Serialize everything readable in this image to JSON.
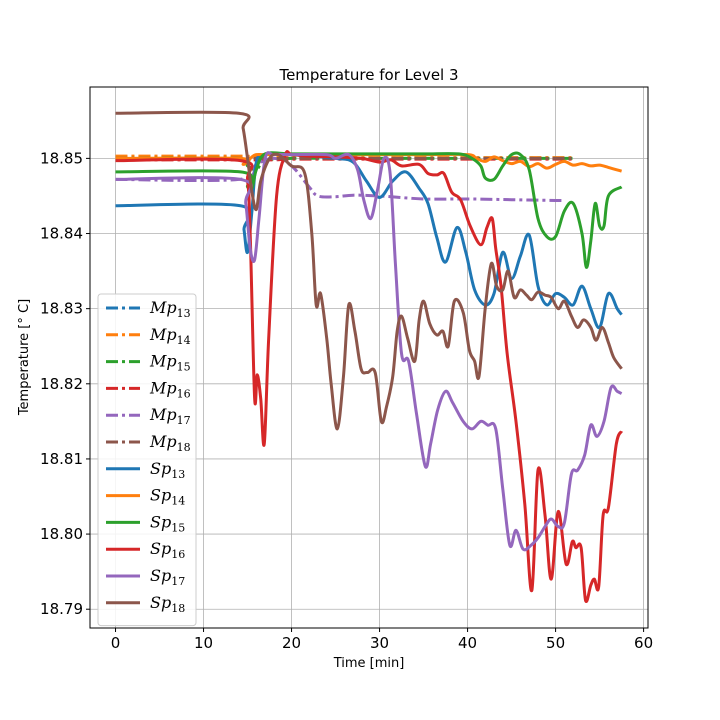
{
  "chart_data": {
    "type": "line",
    "title": "Temperature for Level 3",
    "xlabel": "Time [min]",
    "ylabel": "Temperature [° C]",
    "xlim": [
      -2.9,
      60.5
    ],
    "ylim": [
      18.7875,
      18.8595
    ],
    "xticks": [
      0,
      10,
      20,
      30,
      40,
      50,
      60
    ],
    "xtick_labels": [
      "0",
      "10",
      "20",
      "30",
      "40",
      "50",
      "60"
    ],
    "yticks": [
      18.79,
      18.8,
      18.81,
      18.82,
      18.83,
      18.84,
      18.85
    ],
    "ytick_labels": [
      "18.79",
      "18.80",
      "18.81",
      "18.82",
      "18.83",
      "18.84",
      "18.85"
    ],
    "grid": true,
    "legend_position": "lower-left",
    "series": [
      {
        "name": "Mp",
        "sub": "13",
        "color": "#1f77b4",
        "style": "dashdot",
        "x": [
          0,
          14,
          16,
          18,
          20,
          25,
          30,
          35,
          40,
          45,
          50,
          52
        ],
        "y": [
          18.8502,
          18.8502,
          18.8501,
          18.8501,
          18.8501,
          18.85,
          18.85,
          18.85,
          18.85,
          18.85,
          18.85,
          18.85
        ]
      },
      {
        "name": "Mp",
        "sub": "14",
        "color": "#ff7f0e",
        "style": "dashdot",
        "x": [
          0,
          14,
          16,
          18,
          20,
          25,
          30,
          35,
          40,
          45,
          50,
          52
        ],
        "y": [
          18.8503,
          18.8503,
          18.8502,
          18.8502,
          18.8502,
          18.8501,
          18.8501,
          18.8501,
          18.8501,
          18.8501,
          18.8501,
          18.8501
        ]
      },
      {
        "name": "Mp",
        "sub": "15",
        "color": "#2ca02c",
        "style": "dashdot",
        "x": [
          0,
          14,
          15,
          16,
          17,
          20,
          25,
          30,
          35,
          40,
          45,
          50,
          52
        ],
        "y": [
          18.85,
          18.85,
          18.849,
          18.8485,
          18.8497,
          18.85,
          18.85,
          18.85,
          18.85,
          18.85,
          18.85,
          18.85,
          18.85
        ]
      },
      {
        "name": "Mp",
        "sub": "16",
        "color": "#d62728",
        "style": "dashdot",
        "x": [
          0,
          14,
          16,
          18,
          20,
          25,
          30,
          35,
          40,
          45,
          50,
          52
        ],
        "y": [
          18.8498,
          18.8498,
          18.8498,
          18.8498,
          18.8499,
          18.8499,
          18.8499,
          18.8499,
          18.8499,
          18.8499,
          18.8499,
          18.8499
        ]
      },
      {
        "name": "Mp",
        "sub": "17",
        "color": "#9467bd",
        "style": "dashdot",
        "x": [
          0,
          14,
          16,
          18,
          20,
          22,
          23,
          25,
          27,
          30,
          35,
          40,
          45,
          50,
          51
        ],
        "y": [
          18.8472,
          18.8472,
          18.8492,
          18.85,
          18.849,
          18.8462,
          18.845,
          18.8449,
          18.8451,
          18.845,
          18.8446,
          18.8446,
          18.8445,
          18.8444,
          18.8444
        ]
      },
      {
        "name": "Mp",
        "sub": "18",
        "color": "#8c564b",
        "style": "dashdot",
        "x": [
          0,
          14,
          16,
          18,
          20,
          25,
          30,
          35,
          40,
          45,
          50,
          52
        ],
        "y": [
          18.85,
          18.85,
          18.85,
          18.85,
          18.85,
          18.85,
          18.85,
          18.85,
          18.85,
          18.85,
          18.85,
          18.85
        ]
      },
      {
        "name": "Sp",
        "sub": "13",
        "color": "#1f77b4",
        "style": "solid",
        "x": [
          0,
          14.2,
          14.6,
          15,
          15.5,
          16,
          17,
          20,
          25,
          27,
          28.5,
          30,
          31.5,
          33,
          34.5,
          35.5,
          36.5,
          37.5,
          38.8,
          39.8,
          40.8,
          42,
          43,
          44,
          45,
          46,
          47,
          48,
          49,
          50,
          51,
          52,
          53,
          54,
          55,
          56,
          57,
          57.5
        ],
        "y": [
          18.8437,
          18.8437,
          18.8405,
          18.8375,
          18.843,
          18.8495,
          18.8505,
          18.8505,
          18.85,
          18.8495,
          18.847,
          18.8448,
          18.847,
          18.8482,
          18.846,
          18.844,
          18.8395,
          18.8362,
          18.8408,
          18.8375,
          18.8325,
          18.8305,
          18.832,
          18.8375,
          18.834,
          18.837,
          18.8398,
          18.833,
          18.8305,
          18.832,
          18.8315,
          18.8305,
          18.833,
          18.83,
          18.8275,
          18.832,
          18.83,
          18.8292
        ]
      },
      {
        "name": "Sp",
        "sub": "14",
        "color": "#ff7f0e",
        "style": "solid",
        "x": [
          0,
          14,
          14.5,
          15,
          15.5,
          16,
          17,
          20,
          25,
          30,
          35,
          40,
          41,
          42,
          43,
          44,
          45,
          46,
          47,
          48,
          49,
          50,
          51,
          52,
          53,
          54,
          55,
          56,
          57.5
        ],
        "y": [
          18.85,
          18.85,
          18.8492,
          18.8496,
          18.8502,
          18.8505,
          18.8505,
          18.8505,
          18.8505,
          18.8505,
          18.8505,
          18.8505,
          18.85,
          18.8496,
          18.8502,
          18.8497,
          18.8493,
          18.8496,
          18.8489,
          18.8493,
          18.8487,
          18.8492,
          18.8496,
          18.8491,
          18.8493,
          18.849,
          18.8491,
          18.8488,
          18.8483
        ]
      },
      {
        "name": "Sp",
        "sub": "15",
        "color": "#2ca02c",
        "style": "solid",
        "x": [
          0,
          14.2,
          15,
          15.5,
          16,
          17,
          20,
          25,
          30,
          35,
          39,
          40.5,
          41.5,
          42,
          43,
          44,
          45,
          46,
          47,
          48,
          49,
          50,
          51,
          52,
          53,
          53.5,
          54,
          54.5,
          55,
          55.5,
          56,
          57.5
        ],
        "y": [
          18.8482,
          18.8482,
          18.8462,
          18.846,
          18.8485,
          18.8506,
          18.8506,
          18.8506,
          18.8506,
          18.8506,
          18.8506,
          18.85,
          18.849,
          18.8474,
          18.8472,
          18.849,
          18.8505,
          18.8505,
          18.8485,
          18.842,
          18.8396,
          18.8396,
          18.843,
          18.844,
          18.84,
          18.8355,
          18.839,
          18.844,
          18.841,
          18.841,
          18.845,
          18.8462
        ]
      },
      {
        "name": "Sp",
        "sub": "16",
        "color": "#d62728",
        "style": "solid",
        "x": [
          0,
          14.2,
          15,
          15.3,
          15.8,
          16.1,
          16.5,
          16.9,
          17.4,
          18.3,
          19.3,
          20,
          22,
          25,
          28,
          30,
          31.3,
          32.5,
          34.5,
          35.5,
          36.5,
          37.3,
          38.2,
          39.2,
          40.3,
          41.5,
          42.2,
          42.8,
          43.2,
          43.8,
          44.5,
          45.5,
          46.5,
          47.3,
          48.0,
          48.8,
          49.5,
          50.3,
          51.2,
          51.9,
          52.3,
          52.9,
          53.4,
          54.0,
          54.4,
          54.9,
          55.4,
          56.0,
          56.9,
          57.5
        ],
        "y": [
          18.8497,
          18.8497,
          18.847,
          18.84,
          18.8182,
          18.8212,
          18.818,
          18.812,
          18.826,
          18.845,
          18.8505,
          18.8505,
          18.8503,
          18.8502,
          18.85,
          18.8495,
          18.8498,
          18.849,
          18.8492,
          18.848,
          18.8478,
          18.848,
          18.8455,
          18.8445,
          18.841,
          18.8385,
          18.8408,
          18.842,
          18.838,
          18.833,
          18.824,
          18.815,
          18.804,
          18.7925,
          18.8085,
          18.8025,
          18.794,
          18.803,
          18.796,
          18.799,
          18.7982,
          18.7982,
          18.7912,
          18.7932,
          18.794,
          18.793,
          18.8025,
          18.8035,
          18.812,
          18.8137
        ]
      },
      {
        "name": "Sp",
        "sub": "17",
        "color": "#9467bd",
        "style": "solid",
        "x": [
          0,
          14.2,
          14.8,
          15.3,
          15.8,
          16.3,
          17.0,
          18,
          20,
          24,
          25,
          26.5,
          27.5,
          28.2,
          29,
          29.8,
          30.5,
          31.2,
          31.8,
          32.5,
          33.3,
          34.2,
          35.2,
          35.8,
          36.6,
          37.5,
          38.3,
          39.5,
          40.5,
          41.5,
          42.3,
          43.2,
          44,
          44.8,
          45.5,
          46.3,
          47.2,
          48.0,
          48.8,
          49.5,
          50.3,
          51.0,
          51.8,
          52.5,
          53.3,
          54.0,
          54.7,
          55.5,
          56.3,
          57.0,
          57.5
        ],
        "y": [
          18.8472,
          18.8472,
          18.844,
          18.838,
          18.8365,
          18.842,
          18.85,
          18.8505,
          18.8505,
          18.8505,
          18.85,
          18.8505,
          18.8485,
          18.8445,
          18.842,
          18.846,
          18.85,
          18.848,
          18.836,
          18.824,
          18.823,
          18.816,
          18.809,
          18.812,
          18.8165,
          18.819,
          18.8175,
          18.815,
          18.814,
          18.815,
          18.8145,
          18.814,
          18.806,
          18.7985,
          18.8005,
          18.798,
          18.7985,
          18.7995,
          18.801,
          18.802,
          18.801,
          18.8015,
          18.808,
          18.8085,
          18.8105,
          18.8145,
          18.813,
          18.815,
          18.8195,
          18.819,
          18.8187
        ]
      },
      {
        "name": "Sp",
        "sub": "18",
        "color": "#8c564b",
        "style": "solid",
        "x": [
          0,
          14.0,
          14.5,
          15,
          15.5,
          16.0,
          16.5,
          17.5,
          18.5,
          20,
          21.5,
          22.3,
          22.8,
          23.3,
          24.0,
          24.5,
          25.2,
          25.9,
          26.5,
          27.2,
          27.9,
          28.6,
          29.5,
          30.2,
          30.8,
          31.5,
          32.0,
          32.5,
          33.2,
          34.0,
          34.5,
          35.0,
          35.7,
          36.5,
          37.2,
          37.8,
          38.5,
          39.5,
          40.2,
          40.8,
          41.3,
          42.0,
          42.7,
          43.3,
          44.0,
          44.6,
          45.3,
          46.0,
          46.7,
          47.3,
          48.0,
          48.8,
          49.5,
          50.3,
          51.0,
          51.8,
          52.5,
          53.2,
          54.0,
          54.6,
          55.3,
          56.0,
          56.6,
          57.5
        ],
        "y": [
          18.856,
          18.856,
          18.854,
          18.85,
          18.8455,
          18.8432,
          18.847,
          18.85,
          18.8505,
          18.849,
          18.848,
          18.84,
          18.8305,
          18.832,
          18.826,
          18.82,
          18.814,
          18.821,
          18.8305,
          18.827,
          18.822,
          18.8215,
          18.8215,
          18.815,
          18.817,
          18.821,
          18.827,
          18.829,
          18.826,
          18.823,
          18.8285,
          18.831,
          18.828,
          18.8265,
          18.827,
          18.825,
          18.831,
          18.8295,
          18.8245,
          18.823,
          18.821,
          18.83,
          18.836,
          18.833,
          18.8325,
          18.835,
          18.8315,
          18.8325,
          18.8318,
          18.8312,
          18.8322,
          18.8318,
          18.8315,
          18.83,
          18.831,
          18.829,
          18.8275,
          18.8285,
          18.8275,
          18.8258,
          18.8275,
          18.8255,
          18.8235,
          18.822
        ]
      }
    ]
  }
}
